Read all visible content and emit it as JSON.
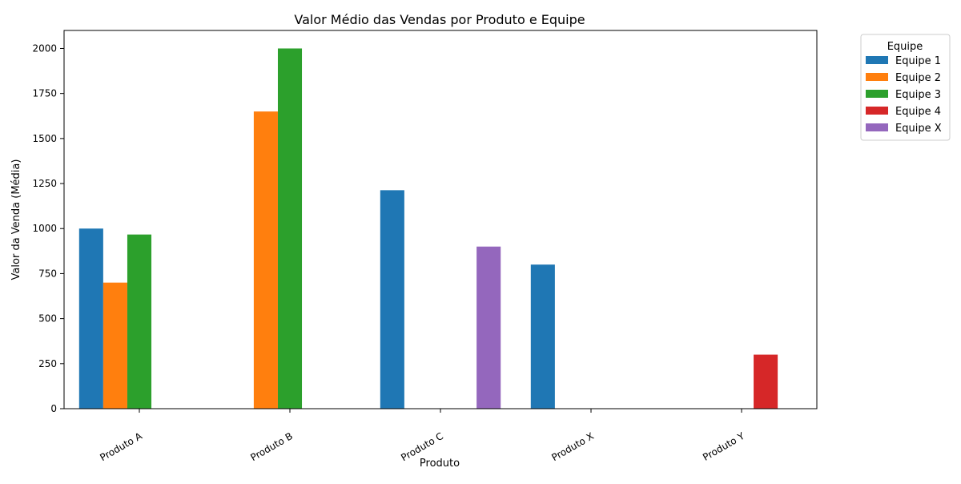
{
  "chart_data": {
    "type": "bar",
    "title": "Valor Médio das Vendas por Produto e Equipe",
    "xlabel": "Produto",
    "ylabel": "Valor da Venda (Média)",
    "categories": [
      "Produto A",
      "Produto B",
      "Produto C",
      "Produto X",
      "Produto Y"
    ],
    "ylim": [
      0,
      2100
    ],
    "yticks": [
      0,
      250,
      500,
      750,
      1000,
      1250,
      1500,
      1750,
      2000
    ],
    "grid": false,
    "legend": {
      "title": "Equipe",
      "placement": "outside-upper-right"
    },
    "series": [
      {
        "name": "Equipe 1",
        "color": "#1f77b4",
        "values": [
          1000,
          null,
          1213,
          800,
          null
        ]
      },
      {
        "name": "Equipe 2",
        "color": "#ff7f0e",
        "values": [
          700,
          1650,
          null,
          null,
          null
        ]
      },
      {
        "name": "Equipe 3",
        "color": "#2ca02c",
        "values": [
          967,
          2000,
          null,
          null,
          null
        ]
      },
      {
        "name": "Equipe 4",
        "color": "#d62728",
        "values": [
          null,
          null,
          null,
          null,
          300
        ]
      },
      {
        "name": "Equipe X",
        "color": "#9467bd",
        "values": [
          null,
          null,
          900,
          null,
          null
        ]
      }
    ]
  }
}
